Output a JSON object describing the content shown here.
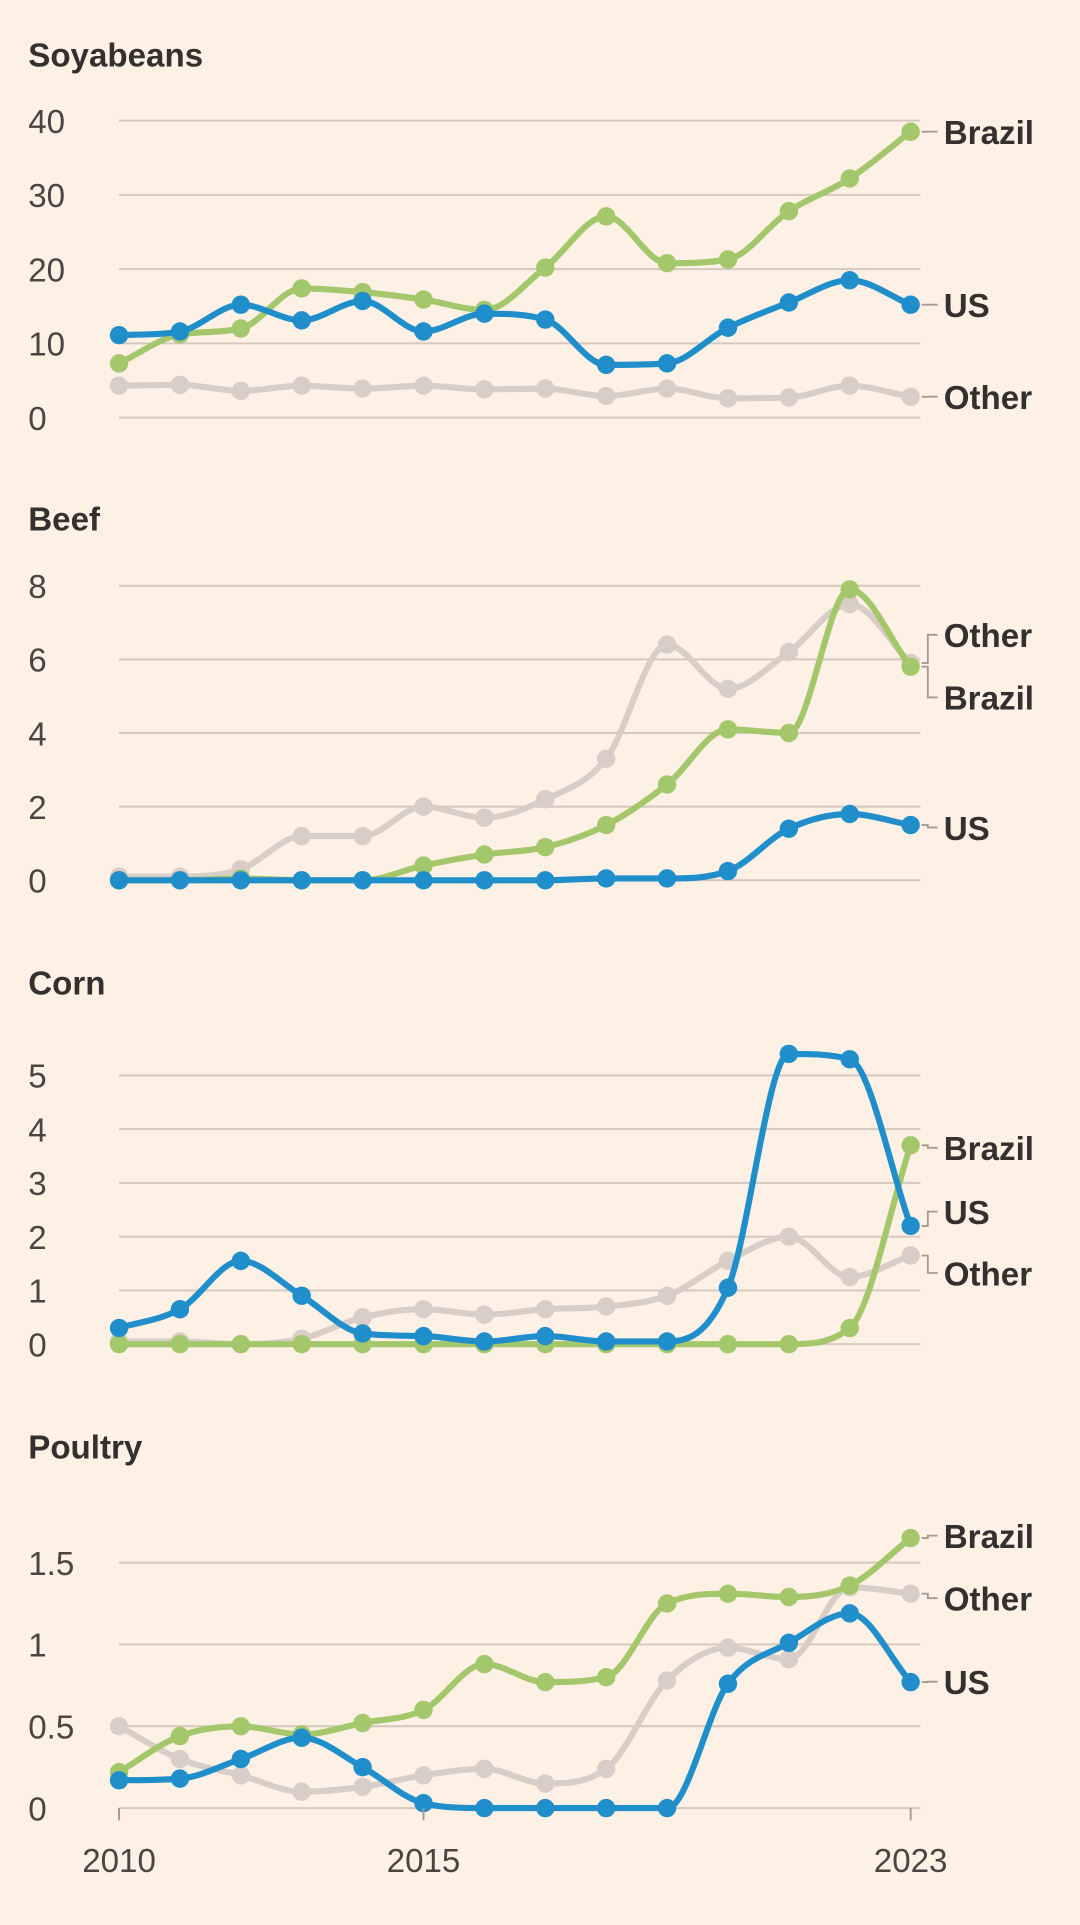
{
  "colors": {
    "Brazil": "#a4c76b",
    "US": "#1f8ecb",
    "Other": "#d9cec7",
    "background": "#fdf1e5"
  },
  "chart_data": [
    {
      "type": "line",
      "title": "Soyabeans",
      "x": [
        2010,
        2011,
        2012,
        2013,
        2014,
        2015,
        2016,
        2017,
        2018,
        2019,
        2020,
        2021,
        2022,
        2023
      ],
      "ylim": [
        0,
        40
      ],
      "yticks": [
        0,
        10,
        20,
        30,
        40
      ],
      "ytick_labels": [
        "0",
        "10",
        "20",
        "30",
        "40"
      ],
      "series": [
        {
          "name": "Brazil",
          "values": [
            7.3,
            11.2,
            12,
            17.4,
            16.9,
            15.9,
            14.5,
            20.2,
            27.1,
            20.8,
            21.3,
            27.8,
            32.2,
            38.5
          ]
        },
        {
          "name": "US",
          "values": [
            11.1,
            11.6,
            15.2,
            13.1,
            15.7,
            11.6,
            14,
            13.2,
            7.1,
            7.3,
            12.1,
            15.5,
            18.5,
            15.2
          ]
        },
        {
          "name": "Other",
          "values": [
            4.3,
            4.4,
            3.6,
            4.3,
            3.9,
            4.3,
            3.8,
            3.9,
            2.9,
            3.9,
            2.6,
            2.7,
            4.3,
            2.8
          ]
        }
      ]
    },
    {
      "type": "line",
      "title": "Beef",
      "x": [
        2010,
        2011,
        2012,
        2013,
        2014,
        2015,
        2016,
        2017,
        2018,
        2019,
        2020,
        2021,
        2022,
        2023
      ],
      "ylim": [
        0,
        8
      ],
      "yticks": [
        0,
        2,
        4,
        6,
        8
      ],
      "ytick_labels": [
        "0",
        "2",
        "4",
        "6",
        "8"
      ],
      "series": [
        {
          "name": "Other",
          "values": [
            0.1,
            0.1,
            0.3,
            1.2,
            1.2,
            2.0,
            1.7,
            2.2,
            3.3,
            6.4,
            5.2,
            6.2,
            7.5,
            5.9
          ]
        },
        {
          "name": "Brazil",
          "values": [
            0,
            0,
            0.05,
            0,
            0,
            0.4,
            0.7,
            0.9,
            1.5,
            2.6,
            4.1,
            4.0,
            7.9,
            5.8
          ]
        },
        {
          "name": "US",
          "values": [
            0,
            0,
            0,
            0,
            0,
            0,
            0,
            0,
            0.05,
            0.05,
            0.25,
            1.4,
            1.8,
            1.5
          ]
        }
      ]
    },
    {
      "type": "line",
      "title": "Corn",
      "x": [
        2010,
        2011,
        2012,
        2013,
        2014,
        2015,
        2016,
        2017,
        2018,
        2019,
        2020,
        2021,
        2022,
        2023
      ],
      "ylim": [
        0,
        5
      ],
      "yticks": [
        0,
        1,
        2,
        3,
        4,
        5
      ],
      "ytick_labels": [
        "0",
        "1",
        "2",
        "3",
        "4",
        "5"
      ],
      "series": [
        {
          "name": "Other",
          "values": [
            0.05,
            0.05,
            0,
            0.1,
            0.5,
            0.65,
            0.55,
            0.65,
            0.7,
            0.9,
            1.55,
            2.0,
            1.25,
            1.65
          ]
        },
        {
          "name": "Brazil",
          "values": [
            0,
            0,
            0,
            0,
            0,
            0,
            0,
            0,
            0,
            0,
            0,
            0,
            0.3,
            3.7
          ]
        },
        {
          "name": "US",
          "values": [
            0.3,
            0.65,
            1.55,
            0.9,
            0.2,
            0.15,
            0.05,
            0.15,
            0.05,
            0.05,
            1.05,
            5.4,
            5.3,
            2.2
          ]
        }
      ]
    },
    {
      "type": "line",
      "title": "Poultry",
      "x": [
        2010,
        2011,
        2012,
        2013,
        2014,
        2015,
        2016,
        2017,
        2018,
        2019,
        2020,
        2021,
        2022,
        2023
      ],
      "ylim": [
        0,
        1.5
      ],
      "yticks": [
        0,
        0.5,
        1,
        1.5
      ],
      "ytick_labels": [
        "0",
        "0.5",
        "1",
        "1.5"
      ],
      "series": [
        {
          "name": "Other",
          "values": [
            0.5,
            0.3,
            0.2,
            0.1,
            0.13,
            0.2,
            0.24,
            0.15,
            0.24,
            0.78,
            0.98,
            0.91,
            1.35,
            1.31
          ]
        },
        {
          "name": "Brazil",
          "values": [
            0.22,
            0.44,
            0.5,
            0.45,
            0.52,
            0.6,
            0.88,
            0.77,
            0.8,
            1.25,
            1.31,
            1.29,
            1.36,
            1.65
          ]
        },
        {
          "name": "US",
          "values": [
            0.17,
            0.18,
            0.3,
            0.43,
            0.25,
            0.03,
            0,
            0,
            0,
            0,
            0.76,
            1.01,
            1.19,
            0.77
          ]
        }
      ]
    }
  ],
  "xaxis": {
    "ticks": [
      2010,
      2015,
      2023
    ],
    "tick_labels": [
      "2010",
      "2015",
      "2023"
    ]
  }
}
